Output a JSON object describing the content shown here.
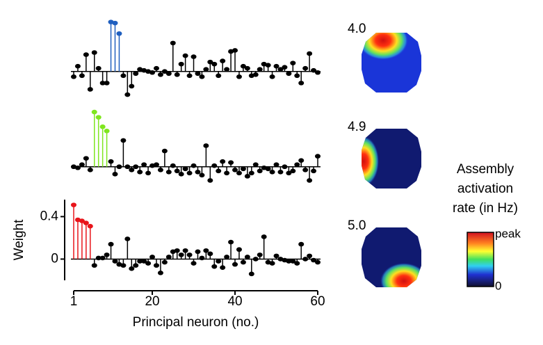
{
  "chart_data": [
    {
      "type": "stem",
      "x": [
        1,
        2,
        3,
        4,
        5,
        6,
        7,
        8,
        9,
        10,
        11,
        12,
        13,
        14,
        15,
        16,
        17,
        18,
        19,
        20,
        21,
        22,
        23,
        24,
        25,
        26,
        27,
        28,
        29,
        30,
        31,
        32,
        33,
        34,
        35,
        36,
        37,
        38,
        39,
        40,
        41,
        42,
        43,
        44,
        45,
        46,
        47,
        48,
        49,
        50,
        51,
        52,
        53,
        54,
        55,
        56,
        57,
        58,
        59,
        60
      ],
      "values": [
        -0.05,
        0.05,
        -0.04,
        0.16,
        -0.17,
        0.18,
        0.03,
        -0.11,
        -0.11,
        0.47,
        0.46,
        0.36,
        -0.04,
        -0.22,
        -0.14,
        -0.02,
        0.02,
        0.01,
        0.0,
        -0.01,
        0.03,
        -0.03,
        0.0,
        -0.02,
        0.27,
        -0.03,
        0.07,
        0.15,
        -0.04,
        0.14,
        -0.02,
        -0.05,
        0.02,
        0.09,
        0.07,
        -0.04,
        0.1,
        0.02,
        0.19,
        0.2,
        -0.05,
        0.05,
        0.03,
        -0.04,
        -0.03,
        0.02,
        0.07,
        0.06,
        -0.05,
        0.05,
        0.02,
        0.04,
        -0.02,
        0.08,
        -0.04,
        -0.11,
        0.03,
        0.17,
        0.01,
        -0.01
      ],
      "colors": [
        "#000",
        "#000",
        "#000",
        "#000",
        "#000",
        "#000",
        "#000",
        "#000",
        "#000",
        "#1f5fbf",
        "#1f5fbf",
        "#1f5fbf",
        "#000",
        "#000",
        "#000",
        "#000",
        "#000",
        "#000",
        "#000",
        "#000",
        "#000",
        "#000",
        "#000",
        "#000",
        "#000",
        "#000",
        "#000",
        "#000",
        "#000",
        "#000",
        "#000",
        "#000",
        "#000",
        "#000",
        "#000",
        "#000",
        "#000",
        "#000",
        "#000",
        "#000",
        "#000",
        "#000",
        "#000",
        "#000",
        "#000",
        "#000",
        "#000",
        "#000",
        "#000",
        "#000",
        "#000",
        "#000",
        "#000",
        "#000",
        "#000",
        "#000",
        "#000",
        "#000",
        "#000",
        "#000"
      ],
      "xlim": [
        1,
        60
      ],
      "ylim": [
        -0.2,
        0.56
      ]
    },
    {
      "type": "stem",
      "x": [
        1,
        2,
        3,
        4,
        5,
        6,
        7,
        8,
        9,
        10,
        11,
        12,
        13,
        14,
        15,
        16,
        17,
        18,
        19,
        20,
        21,
        22,
        23,
        24,
        25,
        26,
        27,
        28,
        29,
        30,
        31,
        32,
        33,
        34,
        35,
        36,
        37,
        38,
        39,
        40,
        41,
        42,
        43,
        44,
        45,
        46,
        47,
        48,
        49,
        50,
        51,
        52,
        53,
        54,
        55,
        56,
        57,
        58,
        59,
        60
      ],
      "values": [
        0.0,
        -0.01,
        0.02,
        0.08,
        -0.03,
        0.52,
        0.47,
        0.38,
        0.34,
        0.05,
        -0.07,
        0.0,
        0.25,
        0.0,
        -0.03,
        0.0,
        -0.05,
        0.02,
        -0.06,
        0.01,
        0.02,
        -0.03,
        0.15,
        -0.05,
        0.01,
        -0.04,
        -0.07,
        -0.02,
        -0.06,
        0.01,
        -0.05,
        -0.08,
        0.2,
        -0.13,
        0.01,
        -0.04,
        0.05,
        -0.06,
        0.04,
        -0.03,
        -0.06,
        -0.02,
        -0.09,
        -0.06,
        0.02,
        -0.04,
        -0.01,
        -0.02,
        -0.05,
        0.02,
        -0.05,
        0.0,
        -0.06,
        -0.04,
        0.02,
        0.06,
        -0.03,
        -0.13,
        -0.04,
        0.1
      ],
      "colors": [
        "#000",
        "#000",
        "#000",
        "#000",
        "#000",
        "#7fe61e",
        "#7fe61e",
        "#7fe61e",
        "#7fe61e",
        "#000",
        "#000",
        "#000",
        "#000",
        "#000",
        "#000",
        "#000",
        "#000",
        "#000",
        "#000",
        "#000",
        "#000",
        "#000",
        "#000",
        "#000",
        "#000",
        "#000",
        "#000",
        "#000",
        "#000",
        "#000",
        "#000",
        "#000",
        "#000",
        "#000",
        "#000",
        "#000",
        "#000",
        "#000",
        "#000",
        "#000",
        "#000",
        "#000",
        "#000",
        "#000",
        "#000",
        "#000",
        "#000",
        "#000",
        "#000",
        "#000",
        "#000",
        "#000",
        "#000",
        "#000",
        "#000",
        "#000",
        "#000",
        "#000",
        "#000",
        "#000"
      ],
      "xlim": [
        1,
        60
      ],
      "ylim": [
        -0.2,
        0.56
      ]
    },
    {
      "type": "stem",
      "x": [
        1,
        2,
        3,
        4,
        5,
        6,
        7,
        8,
        9,
        10,
        11,
        12,
        13,
        14,
        15,
        16,
        17,
        18,
        19,
        20,
        21,
        22,
        23,
        24,
        25,
        26,
        27,
        28,
        29,
        30,
        31,
        32,
        33,
        34,
        35,
        36,
        37,
        38,
        39,
        40,
        41,
        42,
        43,
        44,
        45,
        46,
        47,
        48,
        49,
        50,
        51,
        52,
        53,
        54,
        55,
        56,
        57,
        58,
        59,
        60
      ],
      "values": [
        0.51,
        0.37,
        0.36,
        0.34,
        0.31,
        -0.06,
        0.01,
        0.01,
        0.04,
        0.14,
        -0.02,
        -0.05,
        -0.06,
        0.19,
        -0.09,
        -0.06,
        -0.02,
        -0.02,
        -0.04,
        0.02,
        -0.06,
        -0.13,
        -0.03,
        0.02,
        0.07,
        0.08,
        0.04,
        0.08,
        0.04,
        -0.04,
        0.07,
        0.01,
        0.08,
        0.05,
        -0.07,
        -0.02,
        -0.08,
        0.02,
        0.16,
        -0.05,
        0.09,
        -0.03,
        0.02,
        -0.14,
        0.0,
        0.04,
        0.21,
        -0.03,
        -0.04,
        0.03,
        0.0,
        -0.01,
        -0.02,
        -0.02,
        -0.04,
        0.14,
        0.0,
        0.03,
        -0.01,
        -0.03
      ],
      "colors": [
        "#e8141a",
        "#e8141a",
        "#e8141a",
        "#e8141a",
        "#e8141a",
        "#000",
        "#000",
        "#000",
        "#000",
        "#000",
        "#000",
        "#000",
        "#000",
        "#000",
        "#000",
        "#000",
        "#000",
        "#000",
        "#000",
        "#000",
        "#000",
        "#000",
        "#000",
        "#000",
        "#000",
        "#000",
        "#000",
        "#000",
        "#000",
        "#000",
        "#000",
        "#000",
        "#000",
        "#000",
        "#000",
        "#000",
        "#000",
        "#000",
        "#000",
        "#000",
        "#000",
        "#000",
        "#000",
        "#000",
        "#000",
        "#000",
        "#000",
        "#000",
        "#000",
        "#000",
        "#000",
        "#000",
        "#000",
        "#000",
        "#000",
        "#000",
        "#000",
        "#000",
        "#000",
        "#000"
      ],
      "xlim": [
        1,
        60
      ],
      "ylim": [
        -0.2,
        0.56
      ],
      "xticks": [
        1,
        20,
        40,
        60
      ],
      "yticks": [
        0,
        0.4
      ],
      "xlabel": "Principal neuron (no.)",
      "ylabel": "Weight"
    }
  ],
  "rate_maps": {
    "peak_rates": [
      "4.0",
      "4.9",
      "5.0"
    ]
  },
  "colorbar": {
    "title": [
      "Assembly",
      "activation",
      "rate (in Hz)"
    ],
    "max_label": "peak",
    "min_label": "0"
  }
}
